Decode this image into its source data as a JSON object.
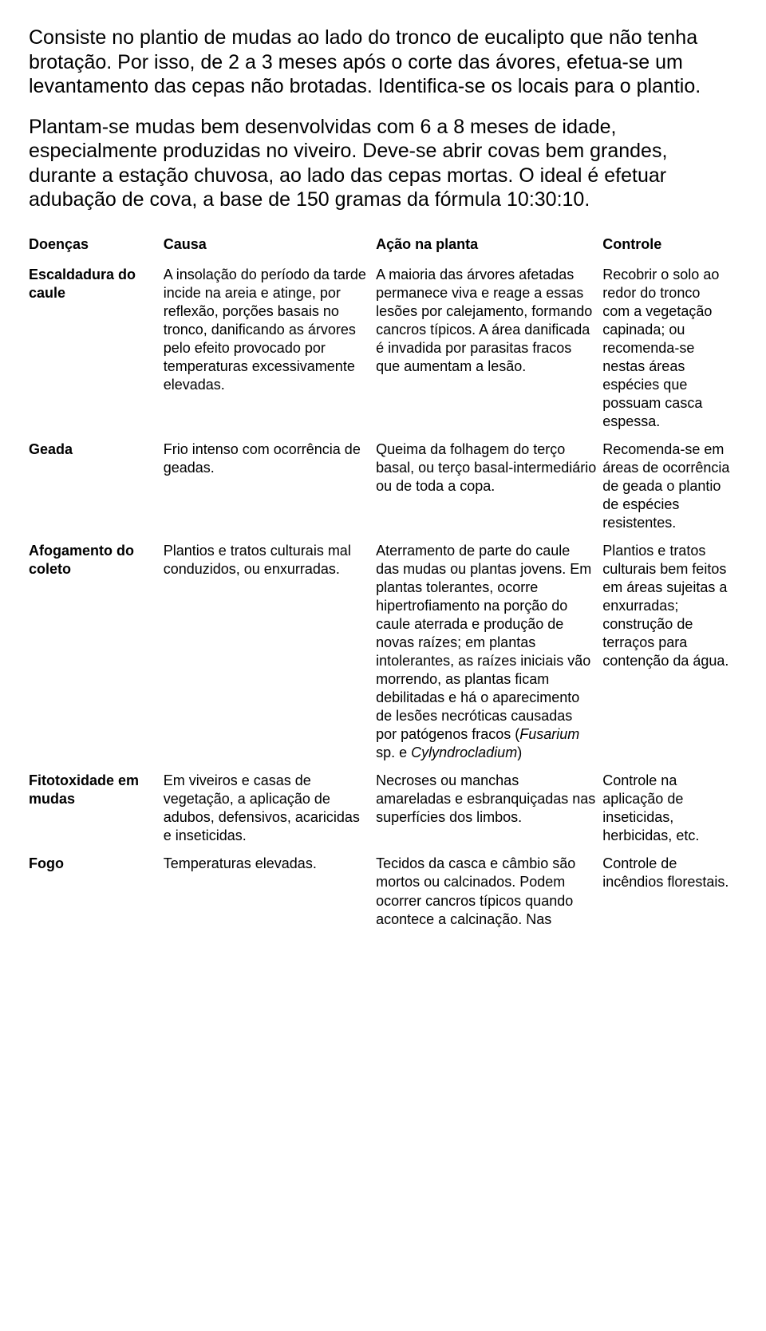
{
  "paragraphs": {
    "p1": "Consiste no plantio de mudas ao lado do tronco de eucalipto que não tenha brotação. Por isso, de 2 a 3 meses após o corte das ávores, efetua-se um levantamento das cepas não brotadas. Identifica-se os locais para o plantio.",
    "p2": "Plantam-se mudas bem desenvolvidas com 6 a 8 meses de idade, especialmente produzidas no viveiro. Deve-se abrir covas bem grandes, durante a estação chuvosa, ao lado das cepas mortas. O ideal é efetuar adubação de cova, a base de 150 gramas da fórmula 10:30:10."
  },
  "table": {
    "headers": {
      "h1": "Doenças",
      "h2": "Causa",
      "h3": "Ação na planta",
      "h4": "Controle"
    },
    "rows": {
      "r1": {
        "doenca": "Escaldadura do caule",
        "causa": "A insolação do período da tarde incide na areia e atinge, por reflexão, porções basais no tronco, danificando as árvores pelo efeito provocado por temperaturas excessivamente elevadas.",
        "acao": "A maioria das árvores afetadas permanece viva e reage a essas lesões por calejamento, formando cancros típicos. A área danificada é invadida por parasitas fracos que aumentam a lesão.",
        "controle": "Recobrir o solo ao redor do tronco com a vegetação capinada; ou recomenda-se nestas áreas espécies que possuam casca espessa."
      },
      "r2": {
        "doenca": "Geada",
        "causa": "Frio intenso com ocorrência de geadas.",
        "acao": "Queima da folhagem do terço basal, ou terço basal-intermediário ou de toda a copa.",
        "controle": "Recomenda-se em áreas de ocorrência de geada o plantio de espécies resistentes."
      },
      "r3": {
        "doenca": "Afogamento do coleto",
        "causa": "Plantios e tratos culturais mal conduzidos, ou enxurradas.",
        "acao_pre": "Aterramento de parte do caule das mudas ou plantas jovens. Em plantas tolerantes, ocorre hipertrofiamento na porção do caule aterrada e produção de novas raízes; em plantas intolerantes, as raízes iniciais vão morrendo, as plantas ficam debilitadas e há o aparecimento de lesões necróticas causadas por patógenos fracos (",
        "acao_it1": "Fusarium",
        "acao_mid": " sp. e ",
        "acao_it2": "Cylyndrocladium",
        "acao_post": ")",
        "controle": "Plantios e tratos culturais bem feitos em áreas sujeitas a enxurradas; construção de terraços para contenção da água."
      },
      "r4": {
        "doenca": "Fitotoxidade em mudas",
        "causa": "Em viveiros e casas de vegetação, a aplicação de adubos, defensivos, acaricidas e inseticidas.",
        "acao": "Necroses ou manchas amareladas e esbranquiçadas nas superfícies dos limbos.",
        "controle": "Controle na aplicação de inseticidas, herbicidas, etc."
      },
      "r5": {
        "doenca": "Fogo",
        "causa": "Temperaturas elevadas.",
        "acao": "Tecidos da casca e câmbio são mortos ou calcinados. Podem ocorrer cancros típicos quando acontece a calcinação. Nas",
        "controle": "Controle de incêndios florestais."
      }
    }
  }
}
